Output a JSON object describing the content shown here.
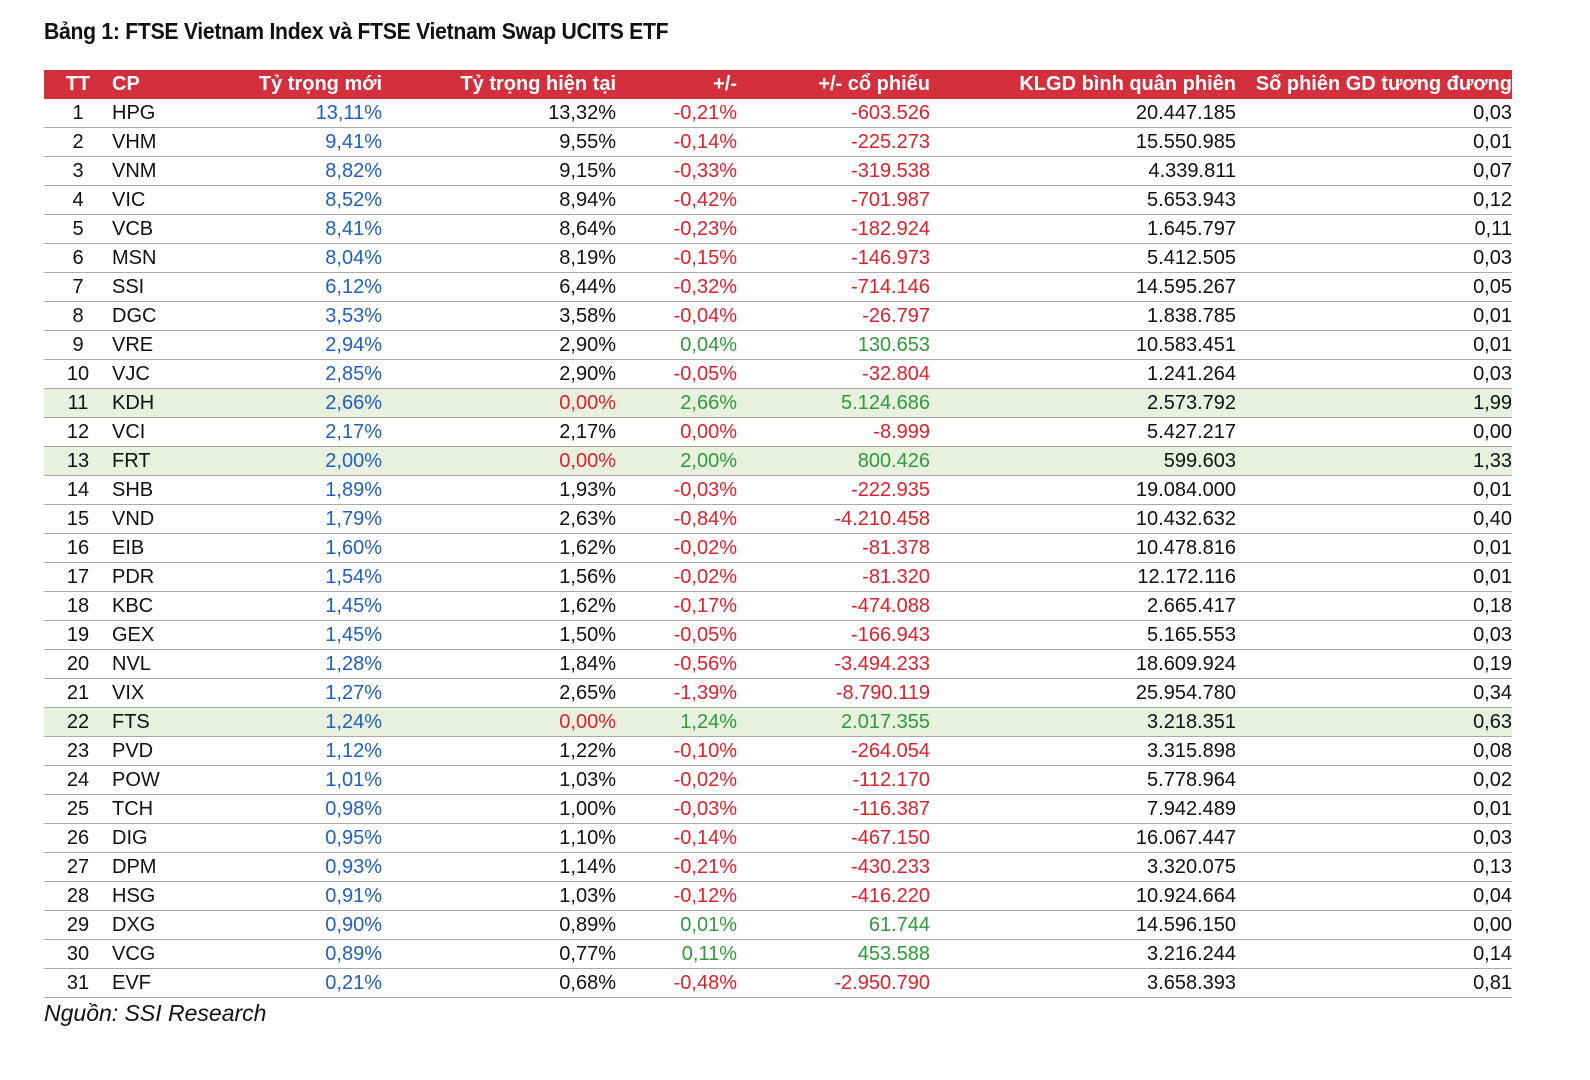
{
  "title": "Bảng 1: FTSE Vietnam Index và FTSE Vietnam Swap UCITS ETF",
  "headers": [
    "TT",
    "CP",
    "Tỷ trọng mới",
    "Tỷ trọng hiện tại",
    "+/-",
    "+/- cổ phiếu",
    "KLGD bình quân phiên",
    "Số phiên GD tương đương"
  ],
  "colors": {
    "header_bg": "#d32f3c",
    "highlight_bg": "#e7f1dd",
    "blue": "#1f5fbf",
    "red": "#e0202a",
    "green": "#2f9a3a"
  },
  "rows": [
    [
      "1",
      "HPG",
      "13,11%",
      "13,32%",
      "-0,21%",
      "-603.526",
      "20.447.185",
      "0,03"
    ],
    [
      "2",
      "VHM",
      "9,41%",
      "9,55%",
      "-0,14%",
      "-225.273",
      "15.550.985",
      "0,01"
    ],
    [
      "3",
      "VNM",
      "8,82%",
      "9,15%",
      "-0,33%",
      "-319.538",
      "4.339.811",
      "0,07"
    ],
    [
      "4",
      "VIC",
      "8,52%",
      "8,94%",
      "-0,42%",
      "-701.987",
      "5.653.943",
      "0,12"
    ],
    [
      "5",
      "VCB",
      "8,41%",
      "8,64%",
      "-0,23%",
      "-182.924",
      "1.645.797",
      "0,11"
    ],
    [
      "6",
      "MSN",
      "8,04%",
      "8,19%",
      "-0,15%",
      "-146.973",
      "5.412.505",
      "0,03"
    ],
    [
      "7",
      "SSI",
      "6,12%",
      "6,44%",
      "-0,32%",
      "-714.146",
      "14.595.267",
      "0,05"
    ],
    [
      "8",
      "DGC",
      "3,53%",
      "3,58%",
      "-0,04%",
      "-26.797",
      "1.838.785",
      "0,01"
    ],
    [
      "9",
      "VRE",
      "2,94%",
      "2,90%",
      "0,04%",
      "130.653",
      "10.583.451",
      "0,01"
    ],
    [
      "10",
      "VJC",
      "2,85%",
      "2,90%",
      "-0,05%",
      "-32.804",
      "1.241.264",
      "0,03"
    ],
    [
      "11",
      "KDH",
      "2,66%",
      "0,00%",
      "2,66%",
      "5.124.686",
      "2.573.792",
      "1,99"
    ],
    [
      "12",
      "VCI",
      "2,17%",
      "2,17%",
      "0,00%",
      "-8.999",
      "5.427.217",
      "0,00"
    ],
    [
      "13",
      "FRT",
      "2,00%",
      "0,00%",
      "2,00%",
      "800.426",
      "599.603",
      "1,33"
    ],
    [
      "14",
      "SHB",
      "1,89%",
      "1,93%",
      "-0,03%",
      "-222.935",
      "19.084.000",
      "0,01"
    ],
    [
      "15",
      "VND",
      "1,79%",
      "2,63%",
      "-0,84%",
      "-4.210.458",
      "10.432.632",
      "0,40"
    ],
    [
      "16",
      "EIB",
      "1,60%",
      "1,62%",
      "-0,02%",
      "-81.378",
      "10.478.816",
      "0,01"
    ],
    [
      "17",
      "PDR",
      "1,54%",
      "1,56%",
      "-0,02%",
      "-81.320",
      "12.172.116",
      "0,01"
    ],
    [
      "18",
      "KBC",
      "1,45%",
      "1,62%",
      "-0,17%",
      "-474.088",
      "2.665.417",
      "0,18"
    ],
    [
      "19",
      "GEX",
      "1,45%",
      "1,50%",
      "-0,05%",
      "-166.943",
      "5.165.553",
      "0,03"
    ],
    [
      "20",
      "NVL",
      "1,28%",
      "1,84%",
      "-0,56%",
      "-3.494.233",
      "18.609.924",
      "0,19"
    ],
    [
      "21",
      "VIX",
      "1,27%",
      "2,65%",
      "-1,39%",
      "-8.790.119",
      "25.954.780",
      "0,34"
    ],
    [
      "22",
      "FTS",
      "1,24%",
      "0,00%",
      "1,24%",
      "2.017.355",
      "3.218.351",
      "0,63"
    ],
    [
      "23",
      "PVD",
      "1,12%",
      "1,22%",
      "-0,10%",
      "-264.054",
      "3.315.898",
      "0,08"
    ],
    [
      "24",
      "POW",
      "1,01%",
      "1,03%",
      "-0,02%",
      "-112.170",
      "5.778.964",
      "0,02"
    ],
    [
      "25",
      "TCH",
      "0,98%",
      "1,00%",
      "-0,03%",
      "-116.387",
      "7.942.489",
      "0,01"
    ],
    [
      "26",
      "DIG",
      "0,95%",
      "1,10%",
      "-0,14%",
      "-467.150",
      "16.067.447",
      "0,03"
    ],
    [
      "27",
      "DPM",
      "0,93%",
      "1,14%",
      "-0,21%",
      "-430.233",
      "3.320.075",
      "0,13"
    ],
    [
      "28",
      "HSG",
      "0,91%",
      "1,03%",
      "-0,12%",
      "-416.220",
      "10.924.664",
      "0,04"
    ],
    [
      "29",
      "DXG",
      "0,90%",
      "0,89%",
      "0,01%",
      "61.744",
      "14.596.150",
      "0,00"
    ],
    [
      "30",
      "VCG",
      "0,89%",
      "0,77%",
      "0,11%",
      "453.588",
      "3.216.244",
      "0,14"
    ],
    [
      "31",
      "EVF",
      "0,21%",
      "0,68%",
      "-0,48%",
      "-2.950.790",
      "3.658.393",
      "0,81"
    ]
  ],
  "highlight_rows": [
    10,
    12,
    21
  ],
  "red_current_rows": [
    10,
    12,
    21
  ],
  "source": "Nguồn: SSI Research"
}
